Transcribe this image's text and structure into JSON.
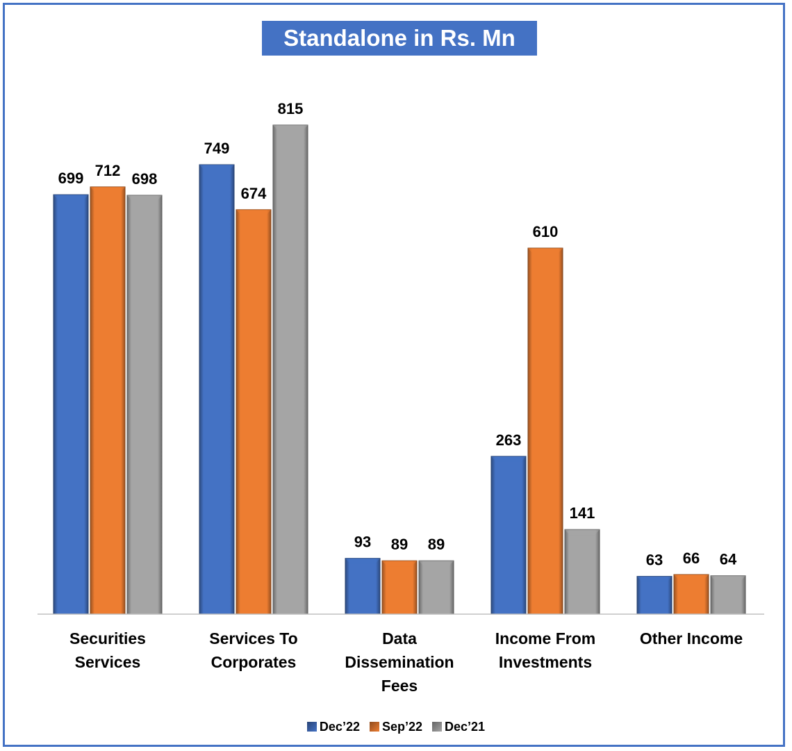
{
  "chart_data": {
    "type": "bar",
    "title": "Standalone in Rs. Mn",
    "categories": [
      [
        "Securities",
        "Services"
      ],
      [
        "Services To",
        "Corporates"
      ],
      [
        "Data",
        "Dissemination",
        "Fees"
      ],
      [
        "Income From",
        "Investments"
      ],
      [
        "Other Income"
      ]
    ],
    "series": [
      {
        "name": "Dec’22",
        "color": "#4472c4",
        "values": [
          699,
          749,
          93,
          263,
          63
        ]
      },
      {
        "name": "Sep’22",
        "color": "#ed7d31",
        "values": [
          712,
          674,
          89,
          610,
          66
        ]
      },
      {
        "name": "Dec’21",
        "color": "#a5a5a5",
        "values": [
          698,
          815,
          89,
          141,
          64
        ]
      }
    ],
    "ylim": [
      0,
      900
    ],
    "grid": false,
    "legend_position": "bottom",
    "data_labels": true
  }
}
